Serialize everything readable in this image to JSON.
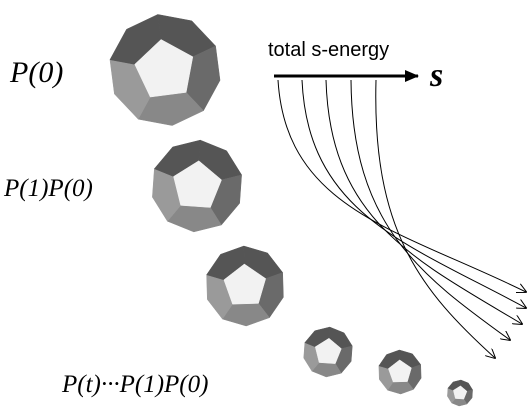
{
  "labels": {
    "p0": "P(0)",
    "p1p0": "P(1)P(0)",
    "ptp0": "P(t)···P(1)P(0)"
  },
  "arrow": {
    "label": "total s-energy",
    "symbol": "s"
  }
}
